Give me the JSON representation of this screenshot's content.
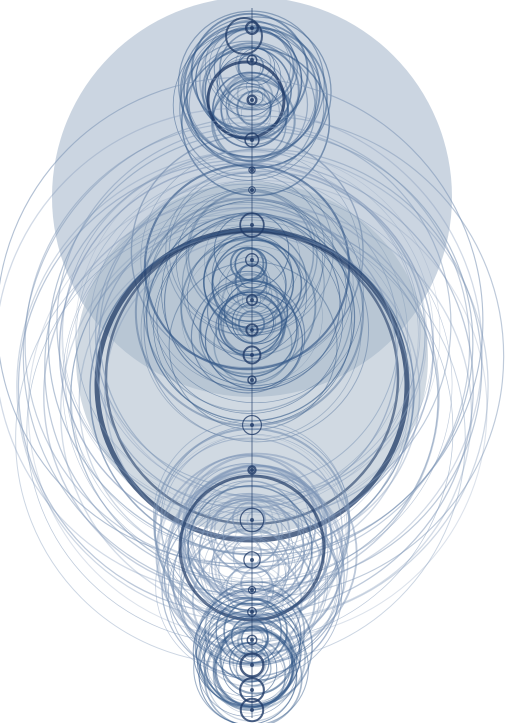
{
  "artwork": {
    "style": "generative concentric circle pattern",
    "colors": {
      "background": "#ffffff",
      "disc_fill": "#c8d3df",
      "disc_fill_dark": "#a9b9ca",
      "stroke_dark": "#1f3a66",
      "stroke_mid": "#355a89",
      "stroke_light": "#7d95b6"
    }
  }
}
